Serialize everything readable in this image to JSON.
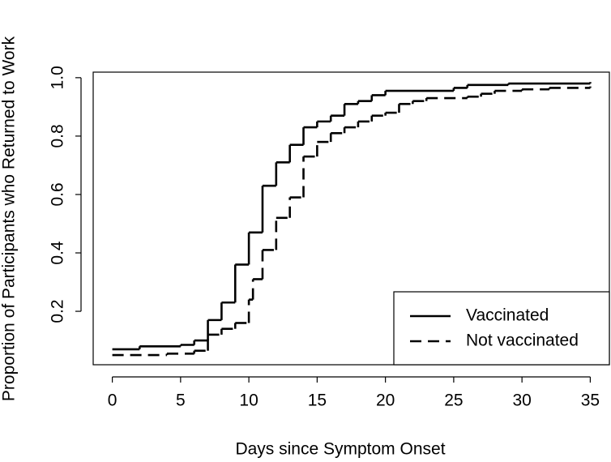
{
  "chart_data": {
    "type": "step",
    "xlabel": "Days since Symptom Onset",
    "ylabel": "Proportion of Participants who Returned to Work",
    "xlim": [
      -1.4,
      36.4
    ],
    "ylim": [
      0.017,
      1.019
    ],
    "xticks": [
      0,
      5,
      10,
      15,
      20,
      25,
      30,
      35
    ],
    "yticks": [
      0.2,
      0.4,
      0.6,
      0.8,
      {
        "value": 1,
        "label": "1.0"
      }
    ],
    "legend": "bottomright",
    "series": [
      {
        "name": "Vaccinated",
        "color": "#000000",
        "dash": "solid",
        "x": [
          0,
          2,
          5,
          6,
          7,
          8,
          9,
          10,
          11,
          12,
          13,
          14,
          15,
          16,
          17,
          18,
          19,
          20,
          25,
          26,
          29,
          35
        ],
        "values": [
          0.07,
          0.08,
          0.085,
          0.1,
          0.17,
          0.23,
          0.36,
          0.47,
          0.63,
          0.71,
          0.77,
          0.83,
          0.85,
          0.87,
          0.91,
          0.92,
          0.94,
          0.955,
          0.965,
          0.975,
          0.98,
          0.985
        ]
      },
      {
        "name": "Not vaccinated",
        "color": "#000000",
        "dash": "dashed",
        "x": [
          0,
          4,
          6,
          7,
          8,
          9,
          10,
          10.3,
          11,
          12,
          13,
          14,
          15,
          16,
          17,
          18,
          19,
          20,
          21,
          22,
          23,
          26,
          27,
          28,
          30,
          32,
          35
        ],
        "values": [
          0.05,
          0.055,
          0.065,
          0.12,
          0.14,
          0.16,
          0.24,
          0.31,
          0.41,
          0.52,
          0.59,
          0.73,
          0.78,
          0.81,
          0.83,
          0.85,
          0.87,
          0.88,
          0.91,
          0.92,
          0.93,
          0.935,
          0.945,
          0.955,
          0.96,
          0.965,
          0.97
        ]
      }
    ]
  }
}
